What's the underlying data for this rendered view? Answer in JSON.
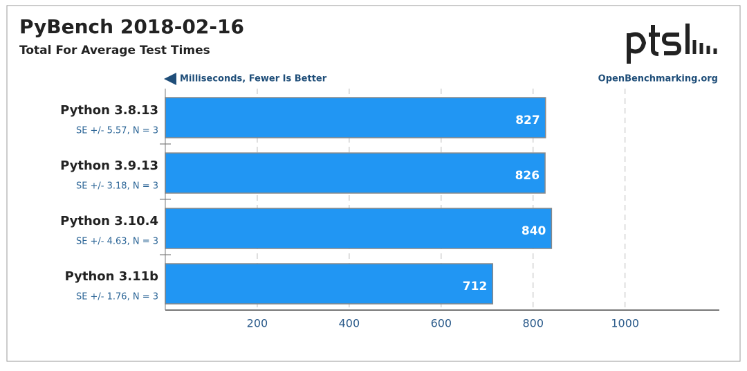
{
  "chart_data": {
    "type": "bar",
    "orientation": "horizontal",
    "title": "PyBench 2018-02-16",
    "subtitle": "Total For Average Test Times",
    "x_label": "Milliseconds, Fewer Is Better",
    "source": "OpenBenchmarking.org",
    "categories": [
      "Python 3.8.13",
      "Python 3.9.13",
      "Python 3.10.4",
      "Python 3.11b"
    ],
    "annotations": [
      "SE +/- 5.57, N = 3",
      "SE +/- 3.18, N = 3",
      "SE +/- 4.63, N = 3",
      "SE +/- 1.76, N = 3"
    ],
    "values": [
      827,
      826,
      840,
      712
    ],
    "color": "#2196f3",
    "xlim": [
      0,
      1205
    ],
    "xticks": [
      200,
      400,
      600,
      800,
      1000
    ],
    "grid": true
  }
}
